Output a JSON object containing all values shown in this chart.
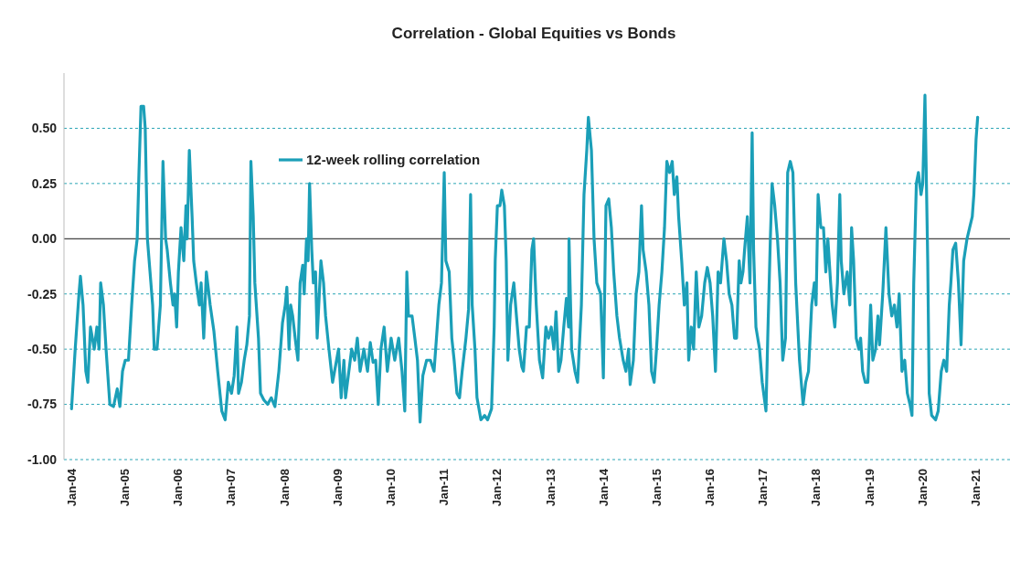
{
  "chart_data": {
    "type": "line",
    "title": "Correlation - Global Equities vs Bonds",
    "x": [
      "2004-01-01",
      "2004-01-26",
      "2004-02-21",
      "2004-03-02",
      "2004-03-20",
      "2004-04-08",
      "2004-04-22",
      "2004-05-10",
      "2004-06-05",
      "2004-06-23",
      "2004-07-08",
      "2004-07-19",
      "2004-08-07",
      "2004-08-25",
      "2004-09-20",
      "2004-10-15",
      "2004-11-10",
      "2004-11-28",
      "2004-12-16",
      "2005-01-04",
      "2005-01-26",
      "2005-02-17",
      "2005-03-09",
      "2005-03-27",
      "2005-04-08",
      "2005-04-22",
      "2005-05-10",
      "2005-05-21",
      "2005-06-05",
      "2005-06-23",
      "2005-07-11",
      "2005-07-22",
      "2005-08-10",
      "2005-09-02",
      "2005-09-20",
      "2005-10-08",
      "2005-10-19",
      "2005-11-10",
      "2005-11-28",
      "2005-12-09",
      "2005-12-23",
      "2006-01-04",
      "2006-01-22",
      "2006-02-10",
      "2006-02-25",
      "2006-03-05",
      "2006-03-20",
      "2006-04-08",
      "2006-04-19",
      "2006-05-07",
      "2006-05-28",
      "2006-06-09",
      "2006-06-27",
      "2006-07-15",
      "2006-08-10",
      "2006-09-05",
      "2006-10-01",
      "2006-10-29",
      "2006-11-21",
      "2006-12-13",
      "2007-01-04",
      "2007-01-22",
      "2007-02-10",
      "2007-02-21",
      "2007-03-13",
      "2007-04-01",
      "2007-04-19",
      "2007-05-07",
      "2007-05-17",
      "2007-06-02",
      "2007-06-13",
      "2007-07-08",
      "2007-07-22",
      "2007-08-14",
      "2007-09-09",
      "2007-10-04",
      "2007-10-29",
      "2007-11-25",
      "2007-12-20",
      "2008-01-08",
      "2008-01-19",
      "2008-02-03",
      "2008-02-14",
      "2008-02-28",
      "2008-03-16",
      "2008-04-04",
      "2008-04-19",
      "2008-05-07",
      "2008-05-17",
      "2008-06-02",
      "2008-06-13",
      "2008-06-23",
      "2008-07-08",
      "2008-07-19",
      "2008-08-03",
      "2008-08-14",
      "2008-09-09",
      "2008-09-27",
      "2008-10-11",
      "2008-11-03",
      "2008-11-28",
      "2009-01-08",
      "2009-01-26",
      "2009-02-14",
      "2009-02-25",
      "2009-03-20",
      "2009-04-08",
      "2009-04-29",
      "2009-05-17",
      "2009-06-05",
      "2009-07-01",
      "2009-07-26",
      "2009-08-14",
      "2009-09-02",
      "2009-09-20",
      "2009-10-08",
      "2009-10-26",
      "2009-11-17",
      "2009-12-09",
      "2010-01-04",
      "2010-01-29",
      "2010-02-25",
      "2010-03-20",
      "2010-04-08",
      "2010-04-22",
      "2010-05-03",
      "2010-05-28",
      "2010-06-16",
      "2010-07-04",
      "2010-07-22",
      "2010-08-10",
      "2010-09-05",
      "2010-10-01",
      "2010-10-26",
      "2010-11-28",
      "2010-12-16",
      "2011-01-04",
      "2011-01-15",
      "2011-02-07",
      "2011-02-25",
      "2011-03-13",
      "2011-04-01",
      "2011-04-19",
      "2011-05-07",
      "2011-06-02",
      "2011-06-20",
      "2011-07-04",
      "2011-07-15",
      "2011-08-03",
      "2011-08-17",
      "2011-09-13",
      "2011-10-08",
      "2011-10-29",
      "2011-11-25",
      "2011-12-13",
      "2011-12-20",
      "2012-01-04",
      "2012-01-22",
      "2012-02-03",
      "2012-02-21",
      "2012-03-05",
      "2012-03-16",
      "2012-04-04",
      "2012-04-26",
      "2012-05-14",
      "2012-06-02",
      "2012-06-20",
      "2012-07-01",
      "2012-07-22",
      "2012-08-10",
      "2012-08-28",
      "2012-09-09",
      "2012-09-27",
      "2012-10-19",
      "2012-11-10",
      "2012-12-02",
      "2012-12-20",
      "2013-01-08",
      "2013-01-26",
      "2013-02-10",
      "2013-02-28",
      "2013-03-16",
      "2013-04-04",
      "2013-04-22",
      "2013-05-07",
      "2013-05-10",
      "2013-05-28",
      "2013-06-20",
      "2013-07-08",
      "2013-08-03",
      "2013-08-21",
      "2013-09-09",
      "2013-09-20",
      "2013-10-11",
      "2013-10-29",
      "2013-11-17",
      "2013-12-13",
      "2014-01-01",
      "2014-01-19",
      "2014-02-07",
      "2014-02-25",
      "2014-03-13",
      "2014-04-04",
      "2014-04-22",
      "2014-05-17",
      "2014-06-05",
      "2014-06-23",
      "2014-07-04",
      "2014-07-26",
      "2014-08-14",
      "2014-09-02",
      "2014-09-20",
      "2014-10-01",
      "2014-10-22",
      "2014-11-10",
      "2014-11-28",
      "2014-12-16",
      "2015-01-01",
      "2015-01-19",
      "2015-02-07",
      "2015-02-25",
      "2015-03-13",
      "2015-04-01",
      "2015-04-19",
      "2015-05-03",
      "2015-05-21",
      "2015-06-02",
      "2015-06-23",
      "2015-07-11",
      "2015-07-29",
      "2015-08-10",
      "2015-08-28",
      "2015-09-13",
      "2015-10-01",
      "2015-10-19",
      "2015-11-07",
      "2015-11-28",
      "2015-12-16",
      "2016-01-04",
      "2016-01-22",
      "2016-02-10",
      "2016-02-28",
      "2016-03-16",
      "2016-04-08",
      "2016-04-26",
      "2016-05-14",
      "2016-06-02",
      "2016-06-20",
      "2016-07-04",
      "2016-07-22",
      "2016-08-03",
      "2016-08-17",
      "2016-08-28",
      "2016-09-16",
      "2016-10-04",
      "2016-10-19",
      "2016-10-29",
      "2016-11-14",
      "2016-12-09",
      "2016-12-27",
      "2017-01-22",
      "2017-02-03",
      "2017-02-21",
      "2017-03-05",
      "2017-03-23",
      "2017-04-11",
      "2017-04-29",
      "2017-05-17",
      "2017-06-05",
      "2017-06-20",
      "2017-07-08",
      "2017-07-26",
      "2017-08-14",
      "2017-09-09",
      "2017-10-04",
      "2017-10-22",
      "2017-11-10",
      "2017-12-02",
      "2017-12-20",
      "2018-01-01",
      "2018-01-15",
      "2018-02-03",
      "2018-02-21",
      "2018-03-09",
      "2018-03-23",
      "2018-04-11",
      "2018-04-22",
      "2018-05-10",
      "2018-05-28",
      "2018-06-13",
      "2018-06-23",
      "2018-07-11",
      "2018-08-03",
      "2018-08-21",
      "2018-09-02",
      "2018-09-16",
      "2018-10-04",
      "2018-10-22",
      "2018-11-03",
      "2018-11-17",
      "2018-12-05",
      "2018-12-23",
      "2019-01-11",
      "2019-01-26",
      "2019-02-14",
      "2019-03-02",
      "2019-03-13",
      "2019-04-04",
      "2019-04-15",
      "2019-04-26",
      "2019-05-17",
      "2019-06-05",
      "2019-06-23",
      "2019-07-11",
      "2019-07-26",
      "2019-08-14",
      "2019-09-02",
      "2019-09-20",
      "2019-10-08",
      "2019-10-22",
      "2019-11-03",
      "2019-11-21",
      "2019-12-05",
      "2019-12-23",
      "2020-01-04",
      "2020-01-19",
      "2020-02-07",
      "2020-02-17",
      "2020-03-05",
      "2020-04-01",
      "2020-04-19",
      "2020-05-10",
      "2020-05-28",
      "2020-06-16",
      "2020-07-04",
      "2020-07-15",
      "2020-07-29",
      "2020-08-17",
      "2020-09-05",
      "2020-09-23",
      "2020-10-11",
      "2020-11-03",
      "2020-11-21",
      "2020-12-09",
      "2020-12-20",
      "2021-01-04",
      "2021-01-15"
    ],
    "series": [
      {
        "name": "12-week rolling correlation",
        "color": "#1b9fb8",
        "values": [
          -0.77,
          -0.5,
          -0.25,
          -0.17,
          -0.3,
          -0.6,
          -0.65,
          -0.4,
          -0.5,
          -0.4,
          -0.5,
          -0.2,
          -0.3,
          -0.5,
          -0.75,
          -0.76,
          -0.68,
          -0.76,
          -0.6,
          -0.55,
          -0.55,
          -0.3,
          -0.1,
          0.0,
          0.3,
          0.6,
          0.6,
          0.5,
          0.0,
          -0.15,
          -0.3,
          -0.5,
          -0.5,
          -0.3,
          0.35,
          0.0,
          -0.05,
          -0.2,
          -0.3,
          -0.25,
          -0.4,
          -0.15,
          0.05,
          -0.1,
          0.15,
          0.0,
          0.4,
          0.1,
          -0.1,
          -0.2,
          -0.3,
          -0.2,
          -0.45,
          -0.15,
          -0.3,
          -0.42,
          -0.6,
          -0.78,
          -0.82,
          -0.65,
          -0.7,
          -0.62,
          -0.4,
          -0.7,
          -0.65,
          -0.55,
          -0.48,
          -0.35,
          0.35,
          0.1,
          -0.2,
          -0.45,
          -0.7,
          -0.73,
          -0.75,
          -0.72,
          -0.76,
          -0.6,
          -0.38,
          -0.3,
          -0.22,
          -0.5,
          -0.3,
          -0.35,
          -0.45,
          -0.55,
          -0.2,
          -0.12,
          -0.25,
          0.0,
          -0.1,
          0.25,
          -0.05,
          -0.2,
          -0.15,
          -0.45,
          -0.1,
          -0.2,
          -0.35,
          -0.5,
          -0.65,
          -0.5,
          -0.72,
          -0.55,
          -0.72,
          -0.6,
          -0.5,
          -0.55,
          -0.45,
          -0.6,
          -0.5,
          -0.6,
          -0.47,
          -0.56,
          -0.55,
          -0.75,
          -0.5,
          -0.4,
          -0.6,
          -0.45,
          -0.55,
          -0.45,
          -0.6,
          -0.78,
          -0.15,
          -0.35,
          -0.35,
          -0.45,
          -0.55,
          -0.83,
          -0.62,
          -0.55,
          -0.55,
          -0.6,
          -0.3,
          -0.2,
          0.3,
          -0.1,
          -0.15,
          -0.45,
          -0.55,
          -0.7,
          -0.72,
          -0.6,
          -0.45,
          -0.32,
          0.2,
          -0.3,
          -0.5,
          -0.72,
          -0.82,
          -0.8,
          -0.82,
          -0.77,
          -0.4,
          -0.1,
          0.15,
          0.15,
          0.22,
          0.15,
          -0.1,
          -0.55,
          -0.3,
          -0.2,
          -0.35,
          -0.5,
          -0.58,
          -0.6,
          -0.4,
          -0.4,
          -0.05,
          0.0,
          -0.3,
          -0.55,
          -0.63,
          -0.4,
          -0.45,
          -0.4,
          -0.5,
          -0.33,
          -0.6,
          -0.55,
          -0.4,
          -0.27,
          -0.4,
          0.0,
          -0.5,
          -0.6,
          -0.65,
          -0.3,
          0.2,
          0.4,
          0.55,
          0.4,
          0.0,
          -0.2,
          -0.25,
          -0.63,
          0.15,
          0.18,
          0.05,
          -0.15,
          -0.35,
          -0.45,
          -0.55,
          -0.6,
          -0.5,
          -0.66,
          -0.55,
          -0.25,
          -0.15,
          0.15,
          -0.05,
          -0.15,
          -0.3,
          -0.6,
          -0.65,
          -0.5,
          -0.3,
          -0.15,
          0.05,
          0.35,
          0.3,
          0.35,
          0.2,
          0.28,
          0.1,
          -0.1,
          -0.3,
          -0.2,
          -0.55,
          -0.4,
          -0.5,
          -0.15,
          -0.4,
          -0.35,
          -0.2,
          -0.13,
          -0.2,
          -0.35,
          -0.6,
          -0.15,
          -0.2,
          0.0,
          -0.1,
          -0.25,
          -0.3,
          -0.45,
          -0.45,
          -0.1,
          -0.2,
          -0.15,
          -0.05,
          0.1,
          -0.2,
          0.48,
          -0.05,
          -0.4,
          -0.5,
          -0.65,
          -0.78,
          -0.45,
          0.0,
          0.25,
          0.15,
          0.0,
          -0.2,
          -0.55,
          -0.45,
          0.3,
          0.35,
          0.3,
          -0.2,
          -0.55,
          -0.75,
          -0.65,
          -0.6,
          -0.3,
          -0.2,
          -0.3,
          0.2,
          0.05,
          0.05,
          -0.15,
          0.0,
          -0.2,
          -0.3,
          -0.4,
          -0.2,
          0.2,
          -0.1,
          -0.25,
          -0.15,
          -0.3,
          0.05,
          -0.1,
          -0.45,
          -0.5,
          -0.45,
          -0.6,
          -0.65,
          -0.65,
          -0.3,
          -0.55,
          -0.5,
          -0.35,
          -0.48,
          -0.25,
          -0.1,
          0.05,
          -0.25,
          -0.35,
          -0.3,
          -0.4,
          -0.25,
          -0.6,
          -0.55,
          -0.7,
          -0.75,
          -0.8,
          -0.2,
          0.25,
          0.3,
          0.2,
          0.25,
          0.65,
          -0.1,
          -0.7,
          -0.8,
          -0.82,
          -0.78,
          -0.6,
          -0.55,
          -0.6,
          -0.3,
          -0.2,
          -0.05,
          -0.02,
          -0.2,
          -0.48,
          -0.1,
          0.0,
          0.05,
          0.1,
          0.2,
          0.45,
          0.55
        ]
      }
    ],
    "xlim": [
      "2003-11-10",
      "2021-08-25"
    ],
    "ylim": [
      -1.0,
      0.75
    ],
    "xticks": [
      {
        "value": "2004-01-01",
        "label": "Jan-04"
      },
      {
        "value": "2005-01-01",
        "label": "Jan-05"
      },
      {
        "value": "2006-01-01",
        "label": "Jan-06"
      },
      {
        "value": "2007-01-01",
        "label": "Jan-07"
      },
      {
        "value": "2008-01-01",
        "label": "Jan-08"
      },
      {
        "value": "2009-01-01",
        "label": "Jan-09"
      },
      {
        "value": "2010-01-01",
        "label": "Jan-10"
      },
      {
        "value": "2011-01-01",
        "label": "Jan-11"
      },
      {
        "value": "2012-01-01",
        "label": "Jan-12"
      },
      {
        "value": "2013-01-01",
        "label": "Jan-13"
      },
      {
        "value": "2014-01-01",
        "label": "Jan-14"
      },
      {
        "value": "2015-01-01",
        "label": "Jan-15"
      },
      {
        "value": "2016-01-01",
        "label": "Jan-16"
      },
      {
        "value": "2017-01-01",
        "label": "Jan-17"
      },
      {
        "value": "2018-01-01",
        "label": "Jan-18"
      },
      {
        "value": "2019-01-01",
        "label": "Jan-19"
      },
      {
        "value": "2020-01-01",
        "label": "Jan-20"
      },
      {
        "value": "2021-01-01",
        "label": "Jan-21"
      }
    ],
    "yticks": [
      {
        "value": -1.0,
        "label": "-1.00"
      },
      {
        "value": -0.75,
        "label": "-0.75"
      },
      {
        "value": -0.5,
        "label": "-0.50"
      },
      {
        "value": -0.25,
        "label": "-0.25"
      },
      {
        "value": 0,
        "label": "0.00"
      },
      {
        "value": 0.25,
        "label": "0.25"
      },
      {
        "value": 0.5,
        "label": "0.50"
      }
    ],
    "grid": "y",
    "legend": "top left",
    "marker": "none",
    "line_style": "solid"
  }
}
